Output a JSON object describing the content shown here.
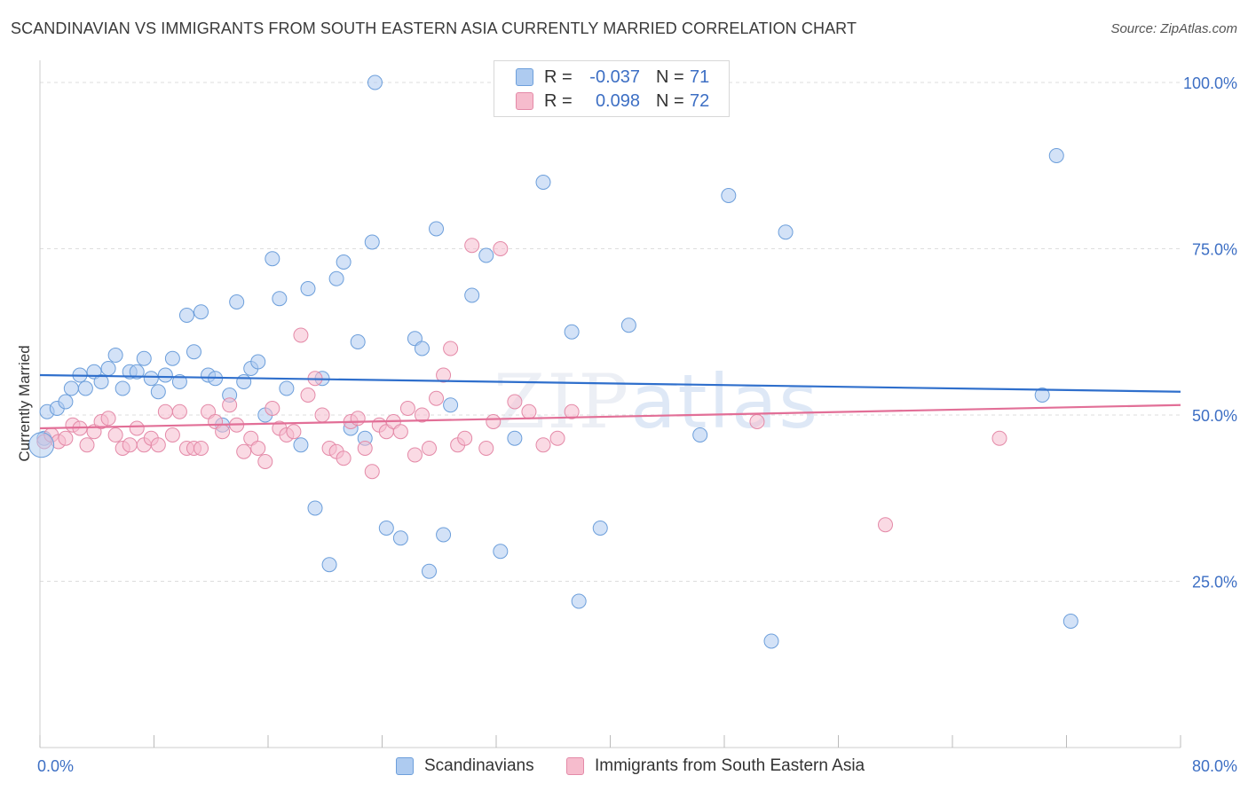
{
  "header": {
    "title": "SCANDINAVIAN VS IMMIGRANTS FROM SOUTH EASTERN ASIA CURRENTLY MARRIED CORRELATION CHART",
    "source": "Source: ZipAtlas.com"
  },
  "watermark": {
    "zip": "ZIP",
    "atlas": "atlas"
  },
  "legend": {
    "rows": [
      {
        "r_label": "R =",
        "r_value": "-0.037",
        "n_label": "N =",
        "n_value": "71",
        "color": "#aecbf0"
      },
      {
        "r_label": "R =",
        "r_value": "0.098",
        "n_label": "N =",
        "n_value": "72",
        "color": "#f6bccd"
      }
    ]
  },
  "colors": {
    "blue_fill": "#aecbf0",
    "blue_stroke": "#6d9fdb",
    "blue_line": "#2f6fcc",
    "pink_fill": "#f6bccd",
    "pink_stroke": "#e48aa8",
    "pink_line": "#e26f97",
    "tick_label": "#3d6fc4",
    "grid": "#dddddd"
  },
  "chart_data": {
    "type": "scatter",
    "xlabel": "",
    "ylabel": "Currently Married",
    "xlim": [
      0,
      80
    ],
    "ylim": [
      0,
      102
    ],
    "x_tick_labels": [
      "0.0%",
      "80.0%"
    ],
    "y_ticks": [
      25,
      50,
      75,
      100
    ],
    "y_tick_labels": [
      "25.0%",
      "50.0%",
      "75.0%",
      "100.0%"
    ],
    "grid": true,
    "legend_position": "top-center",
    "series": [
      {
        "name": "Scandinavians",
        "trend": [
          [
            0,
            56.0
          ],
          [
            80,
            53.5
          ]
        ],
        "points": [
          [
            0.3,
            46.5
          ],
          [
            0.5,
            50.5
          ],
          [
            1.2,
            51.0
          ],
          [
            1.8,
            52.0
          ],
          [
            2.2,
            54.0
          ],
          [
            2.8,
            56.0
          ],
          [
            3.2,
            54.0
          ],
          [
            3.8,
            56.5
          ],
          [
            4.3,
            55.0
          ],
          [
            4.8,
            57.0
          ],
          [
            5.3,
            59.0
          ],
          [
            5.8,
            54.0
          ],
          [
            6.3,
            56.5
          ],
          [
            6.8,
            56.5
          ],
          [
            7.3,
            58.5
          ],
          [
            7.8,
            55.5
          ],
          [
            8.3,
            53.5
          ],
          [
            8.8,
            56.0
          ],
          [
            9.3,
            58.5
          ],
          [
            9.8,
            55.0
          ],
          [
            10.3,
            65.0
          ],
          [
            10.8,
            59.5
          ],
          [
            11.3,
            65.5
          ],
          [
            11.8,
            56.0
          ],
          [
            12.3,
            55.5
          ],
          [
            12.8,
            48.5
          ],
          [
            13.3,
            53.0
          ],
          [
            13.8,
            67.0
          ],
          [
            14.3,
            55.0
          ],
          [
            14.8,
            57.0
          ],
          [
            15.3,
            58.0
          ],
          [
            15.8,
            50.0
          ],
          [
            16.3,
            73.5
          ],
          [
            16.8,
            67.5
          ],
          [
            17.3,
            54.0
          ],
          [
            18.3,
            45.5
          ],
          [
            18.8,
            69.0
          ],
          [
            19.3,
            36.0
          ],
          [
            19.8,
            55.5
          ],
          [
            20.3,
            27.5
          ],
          [
            20.8,
            70.5
          ],
          [
            21.3,
            73.0
          ],
          [
            21.8,
            48.0
          ],
          [
            22.3,
            61.0
          ],
          [
            22.8,
            46.5
          ],
          [
            23.3,
            76.0
          ],
          [
            24.3,
            33.0
          ],
          [
            23.5,
            100.0
          ],
          [
            25.3,
            31.5
          ],
          [
            26.3,
            61.5
          ],
          [
            26.8,
            60.0
          ],
          [
            27.3,
            26.5
          ],
          [
            27.8,
            78.0
          ],
          [
            28.3,
            32.0
          ],
          [
            28.8,
            51.5
          ],
          [
            30.3,
            68.0
          ],
          [
            31.3,
            74.0
          ],
          [
            32.3,
            29.5
          ],
          [
            33.3,
            46.5
          ],
          [
            35.3,
            85.0
          ],
          [
            37.3,
            62.5
          ],
          [
            37.8,
            22.0
          ],
          [
            39.3,
            33.0
          ],
          [
            41.3,
            63.5
          ],
          [
            46.3,
            47.0
          ],
          [
            48.3,
            83.0
          ],
          [
            51.3,
            16.0
          ],
          [
            52.3,
            77.5
          ],
          [
            70.3,
            53.0
          ],
          [
            71.3,
            89.0
          ],
          [
            72.3,
            19.0
          ]
        ]
      },
      {
        "name": "Immigrants from South Eastern Asia",
        "trend": [
          [
            0,
            48.0
          ],
          [
            80,
            51.5
          ]
        ],
        "points": [
          [
            0.3,
            46.0
          ],
          [
            0.8,
            47.0
          ],
          [
            1.3,
            46.0
          ],
          [
            1.8,
            46.5
          ],
          [
            2.3,
            48.5
          ],
          [
            2.8,
            48.0
          ],
          [
            3.3,
            45.5
          ],
          [
            3.8,
            47.5
          ],
          [
            4.3,
            49.0
          ],
          [
            4.8,
            49.5
          ],
          [
            5.3,
            47.0
          ],
          [
            5.8,
            45.0
          ],
          [
            6.3,
            45.5
          ],
          [
            6.8,
            48.0
          ],
          [
            7.3,
            45.5
          ],
          [
            7.8,
            46.5
          ],
          [
            8.3,
            45.5
          ],
          [
            8.8,
            50.5
          ],
          [
            9.3,
            47.0
          ],
          [
            9.8,
            50.5
          ],
          [
            10.3,
            45.0
          ],
          [
            10.8,
            45.0
          ],
          [
            11.3,
            45.0
          ],
          [
            11.8,
            50.5
          ],
          [
            12.3,
            49.0
          ],
          [
            12.8,
            47.5
          ],
          [
            13.3,
            51.5
          ],
          [
            13.8,
            48.5
          ],
          [
            14.3,
            44.5
          ],
          [
            14.8,
            46.5
          ],
          [
            15.3,
            45.0
          ],
          [
            15.8,
            43.0
          ],
          [
            16.3,
            51.0
          ],
          [
            16.8,
            48.0
          ],
          [
            17.3,
            47.0
          ],
          [
            17.8,
            47.5
          ],
          [
            18.3,
            62.0
          ],
          [
            18.8,
            53.0
          ],
          [
            19.3,
            55.5
          ],
          [
            19.8,
            50.0
          ],
          [
            20.3,
            45.0
          ],
          [
            20.8,
            44.5
          ],
          [
            21.3,
            43.5
          ],
          [
            21.8,
            49.0
          ],
          [
            22.3,
            49.5
          ],
          [
            22.8,
            45.0
          ],
          [
            23.3,
            41.5
          ],
          [
            23.8,
            48.5
          ],
          [
            24.3,
            47.5
          ],
          [
            24.8,
            49.0
          ],
          [
            25.3,
            47.5
          ],
          [
            25.8,
            51.0
          ],
          [
            26.3,
            44.0
          ],
          [
            26.8,
            50.0
          ],
          [
            27.3,
            45.0
          ],
          [
            27.8,
            52.5
          ],
          [
            28.3,
            56.0
          ],
          [
            28.8,
            60.0
          ],
          [
            29.3,
            45.5
          ],
          [
            29.8,
            46.5
          ],
          [
            30.3,
            75.5
          ],
          [
            31.3,
            45.0
          ],
          [
            31.8,
            49.0
          ],
          [
            32.3,
            75.0
          ],
          [
            33.3,
            52.0
          ],
          [
            34.3,
            50.5
          ],
          [
            35.3,
            45.5
          ],
          [
            36.3,
            46.5
          ],
          [
            37.3,
            50.5
          ],
          [
            50.3,
            49.0
          ],
          [
            59.3,
            33.5
          ],
          [
            67.3,
            46.5
          ]
        ]
      }
    ]
  }
}
